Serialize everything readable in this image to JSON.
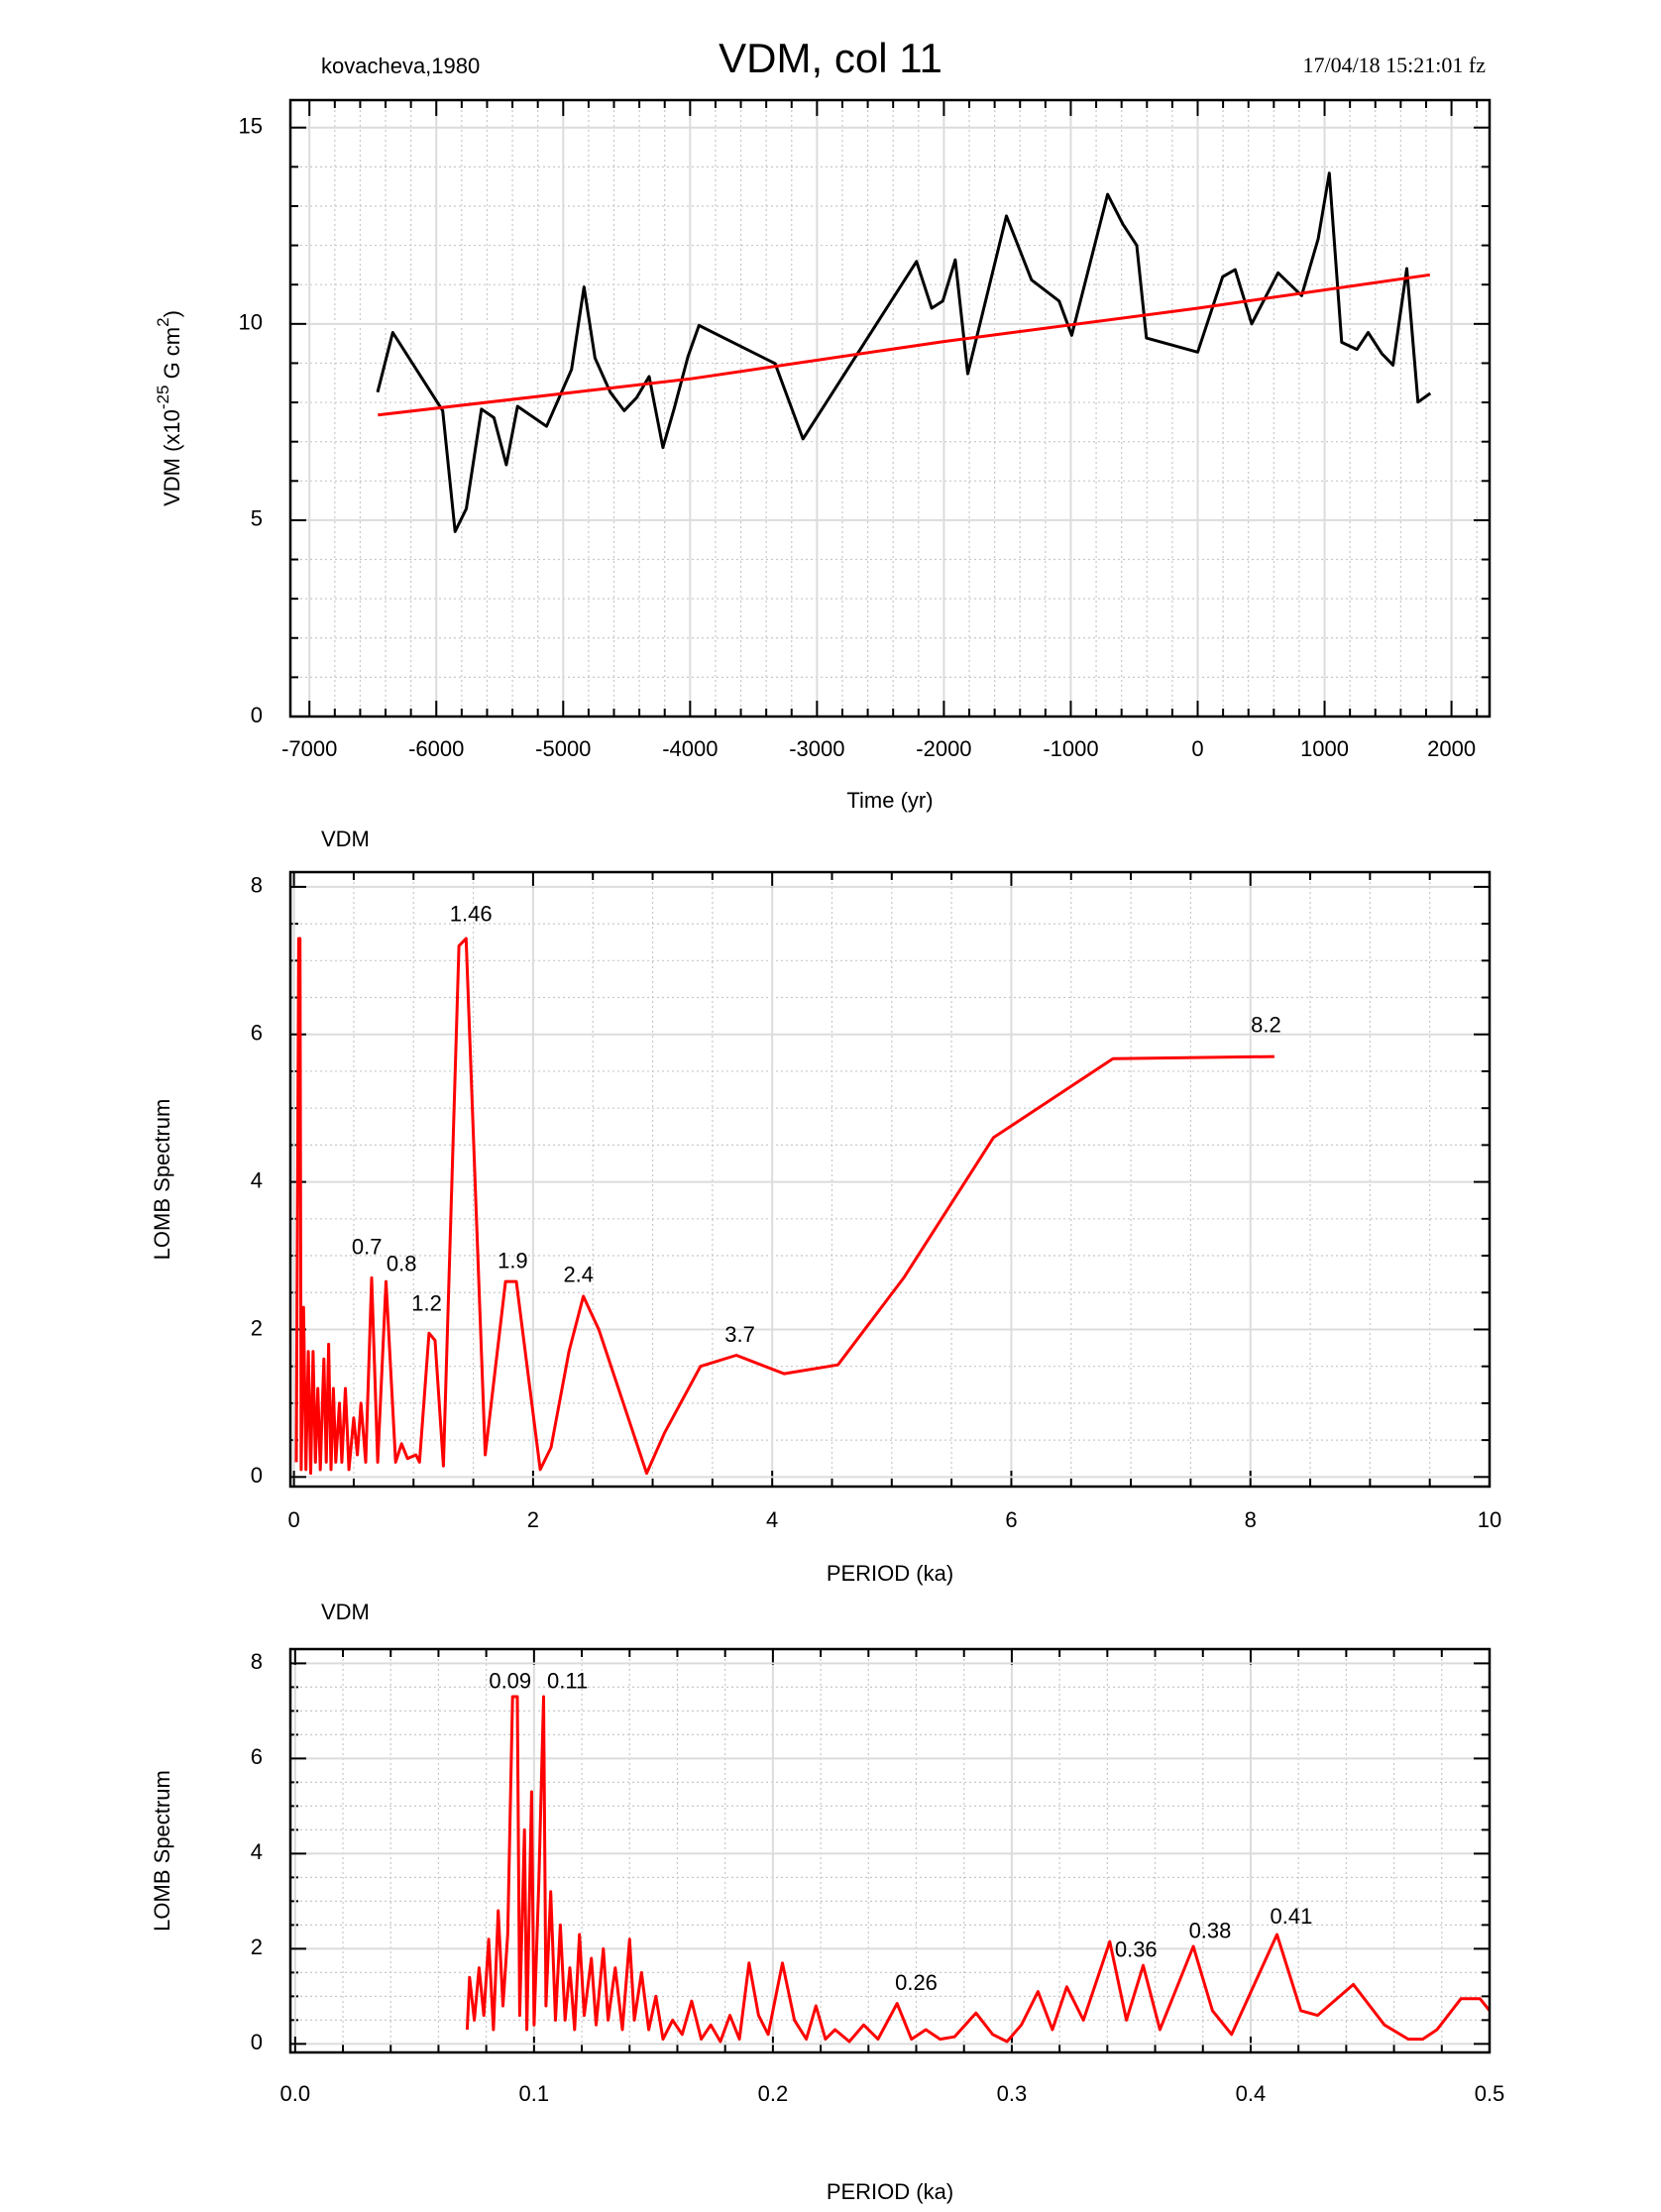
{
  "header": {
    "left": "kovacheva,1980",
    "title": "VDM, col 11",
    "right": "17/04/18  15:21:01 fz"
  },
  "chart_data": [
    {
      "type": "line",
      "ylabel": [
        "VDM (x10",
        "-25",
        " G cm",
        "2",
        ")"
      ],
      "xlabel": "Time (yr)",
      "xlim": [
        -7150,
        2300
      ],
      "xticks": [
        -7000,
        -6000,
        -5000,
        -4000,
        -3000,
        -2000,
        -1000,
        0,
        1000,
        2000
      ],
      "ylim": [
        0,
        15.7
      ],
      "yticks": [
        0,
        5,
        10,
        15
      ],
      "grid": true,
      "series": [
        {
          "color": "#000000",
          "x": [
            -6463,
            -6343,
            -5950,
            -5852,
            -5764,
            -5644,
            -5546,
            -5448,
            -5360,
            -5131,
            -4934,
            -4836,
            -4749,
            -4629,
            -4520,
            -4421,
            -4323,
            -4214,
            -4127,
            -4017,
            -3930,
            -3330,
            -3111,
            -2216,
            -2096,
            -2009,
            -1910,
            -1812,
            -1507,
            -1310,
            -1092,
            -993,
            -710,
            -590,
            -480,
            -404,
            0,
            197,
            295,
            426,
            633,
            819,
            950,
            1037,
            1135,
            1255,
            1343,
            1452,
            1539,
            1648,
            1736,
            1834
          ],
          "values": [
            8.26,
            9.78,
            7.79,
            4.71,
            5.29,
            7.83,
            7.61,
            6.41,
            7.9,
            7.39,
            8.84,
            10.94,
            9.13,
            8.26,
            7.79,
            8.12,
            8.66,
            6.85,
            7.83,
            9.17,
            9.96,
            8.99,
            7.07,
            11.59,
            10.4,
            10.58,
            11.63,
            8.73,
            12.75,
            11.12,
            10.58,
            9.71,
            13.3,
            12.54,
            12.0,
            9.64,
            9.28,
            11.2,
            11.38,
            10.0,
            11.3,
            10.72,
            12.17,
            13.84,
            9.53,
            9.35,
            9.78,
            9.24,
            8.95,
            11.41,
            8.01,
            8.23
          ]
        },
        {
          "color": "#ff0000",
          "x": [
            -6460,
            -4000,
            -2000,
            0,
            1830
          ],
          "values": [
            7.68,
            8.6,
            9.55,
            10.4,
            11.25
          ]
        }
      ]
    },
    {
      "type": "line",
      "title": "VDM",
      "ylabel": "LOMB Spectrum",
      "xlabel": "PERIOD (ka)",
      "xlim": [
        -0.03,
        10
      ],
      "xticks": [
        0,
        2,
        4,
        6,
        8,
        10
      ],
      "ylim": [
        -0.13,
        8.2
      ],
      "yticks": [
        0,
        2,
        4,
        6,
        8
      ],
      "grid": true,
      "series": [
        {
          "color": "#ff0000",
          "x": [
            0.02,
            0.04,
            0.05,
            0.06,
            0.08,
            0.1,
            0.12,
            0.14,
            0.16,
            0.18,
            0.2,
            0.22,
            0.25,
            0.27,
            0.29,
            0.31,
            0.33,
            0.35,
            0.38,
            0.4,
            0.43,
            0.46,
            0.5,
            0.53,
            0.56,
            0.6,
            0.65,
            0.7,
            0.77,
            0.85,
            0.9,
            0.95,
            1.02,
            1.05,
            1.13,
            1.18,
            1.25,
            1.38,
            1.44,
            1.6,
            1.77,
            1.86,
            2.06,
            2.15,
            2.3,
            2.42,
            2.55,
            2.95,
            3.1,
            3.4,
            3.7,
            4.1,
            4.55,
            5.1,
            5.85,
            6.85,
            8.2
          ],
          "values": [
            0.2,
            7.3,
            7.3,
            0.1,
            2.3,
            0.1,
            1.7,
            0.05,
            1.7,
            0.2,
            1.2,
            0.1,
            1.6,
            0.2,
            1.8,
            0.1,
            1.2,
            0.2,
            1.0,
            0.2,
            1.2,
            0.1,
            0.8,
            0.3,
            1.0,
            0.2,
            2.7,
            0.2,
            2.65,
            0.2,
            0.45,
            0.25,
            0.3,
            0.2,
            1.95,
            1.85,
            0.15,
            7.2,
            7.3,
            0.3,
            2.65,
            2.65,
            0.1,
            0.4,
            1.7,
            2.45,
            2.0,
            0.05,
            0.6,
            1.5,
            1.65,
            1.4,
            1.52,
            2.7,
            4.6,
            5.67,
            5.7
          ]
        }
      ],
      "annotations": [
        {
          "text": "0.7",
          "x": 0.61,
          "y": 3.1
        },
        {
          "text": "0.8",
          "x": 0.9,
          "y": 2.87
        },
        {
          "text": "1.2",
          "x": 1.11,
          "y": 2.33
        },
        {
          "text": "1.46",
          "x": 1.48,
          "y": 7.61
        },
        {
          "text": "1.9",
          "x": 1.83,
          "y": 2.91
        },
        {
          "text": "2.4",
          "x": 2.38,
          "y": 2.72
        },
        {
          "text": "3.7",
          "x": 3.73,
          "y": 1.91
        },
        {
          "text": "8.2",
          "x": 8.13,
          "y": 6.11
        }
      ]
    },
    {
      "type": "line",
      "title": "VDM",
      "ylabel": "LOMB Spectrum",
      "xlabel": "PERIOD (ka)",
      "xlim": [
        -0.002,
        0.5
      ],
      "xticks": [
        {
          "value": 0,
          "label": "0.0"
        },
        0.1,
        0.2,
        0.3,
        0.4,
        0.5
      ],
      "ylim": [
        -0.18,
        8.3
      ],
      "yticks": [
        0,
        2,
        4,
        6,
        8
      ],
      "grid": true,
      "series": [
        {
          "color": "#ff0000",
          "x": [
            0.072,
            0.073,
            0.075,
            0.077,
            0.079,
            0.081,
            0.083,
            0.085,
            0.087,
            0.089,
            0.091,
            0.093,
            0.094,
            0.096,
            0.097,
            0.099,
            0.1,
            0.102,
            0.104,
            0.105,
            0.107,
            0.109,
            0.111,
            0.113,
            0.115,
            0.117,
            0.119,
            0.121,
            0.124,
            0.126,
            0.129,
            0.131,
            0.134,
            0.137,
            0.14,
            0.142,
            0.145,
            0.148,
            0.151,
            0.154,
            0.158,
            0.162,
            0.166,
            0.17,
            0.174,
            0.178,
            0.182,
            0.186,
            0.19,
            0.194,
            0.198,
            0.204,
            0.209,
            0.214,
            0.218,
            0.222,
            0.226,
            0.232,
            0.238,
            0.244,
            0.252,
            0.258,
            0.264,
            0.27,
            0.276,
            0.285,
            0.292,
            0.298,
            0.304,
            0.311,
            0.317,
            0.323,
            0.33,
            0.341,
            0.348,
            0.355,
            0.362,
            0.376,
            0.384,
            0.392,
            0.411,
            0.421,
            0.428,
            0.443,
            0.456,
            0.466,
            0.472,
            0.478,
            0.488,
            0.496,
            0.5
          ],
          "values": [
            0.3,
            1.4,
            0.5,
            1.6,
            0.6,
            2.2,
            0.3,
            2.8,
            0.8,
            2.3,
            7.3,
            7.3,
            0.6,
            4.5,
            0.3,
            5.3,
            0.4,
            3.4,
            7.3,
            0.8,
            3.2,
            0.5,
            2.5,
            0.5,
            1.6,
            0.3,
            2.3,
            0.6,
            1.8,
            0.4,
            2.0,
            0.5,
            1.6,
            0.3,
            2.2,
            0.5,
            1.5,
            0.3,
            1.0,
            0.1,
            0.5,
            0.2,
            0.9,
            0.1,
            0.4,
            0.05,
            0.6,
            0.1,
            1.7,
            0.6,
            0.2,
            1.7,
            0.5,
            0.1,
            0.8,
            0.1,
            0.3,
            0.05,
            0.4,
            0.1,
            0.85,
            0.1,
            0.3,
            0.1,
            0.15,
            0.65,
            0.2,
            0.05,
            0.4,
            1.1,
            0.3,
            1.2,
            0.5,
            2.15,
            0.5,
            1.65,
            0.3,
            2.05,
            0.7,
            0.2,
            2.3,
            0.7,
            0.6,
            1.25,
            0.4,
            0.1,
            0.1,
            0.3,
            0.95,
            0.95,
            0.7
          ]
        }
      ],
      "annotations": [
        {
          "text": "0.09",
          "x": 0.09,
          "y": 7.6
        },
        {
          "text": "0.11",
          "x": 0.114,
          "y": 7.6
        },
        {
          "text": "0.26",
          "x": 0.26,
          "y": 1.25
        },
        {
          "text": "0.36",
          "x": 0.352,
          "y": 1.95
        },
        {
          "text": "0.38",
          "x": 0.383,
          "y": 2.35
        },
        {
          "text": "0.41",
          "x": 0.417,
          "y": 2.65
        }
      ]
    }
  ]
}
